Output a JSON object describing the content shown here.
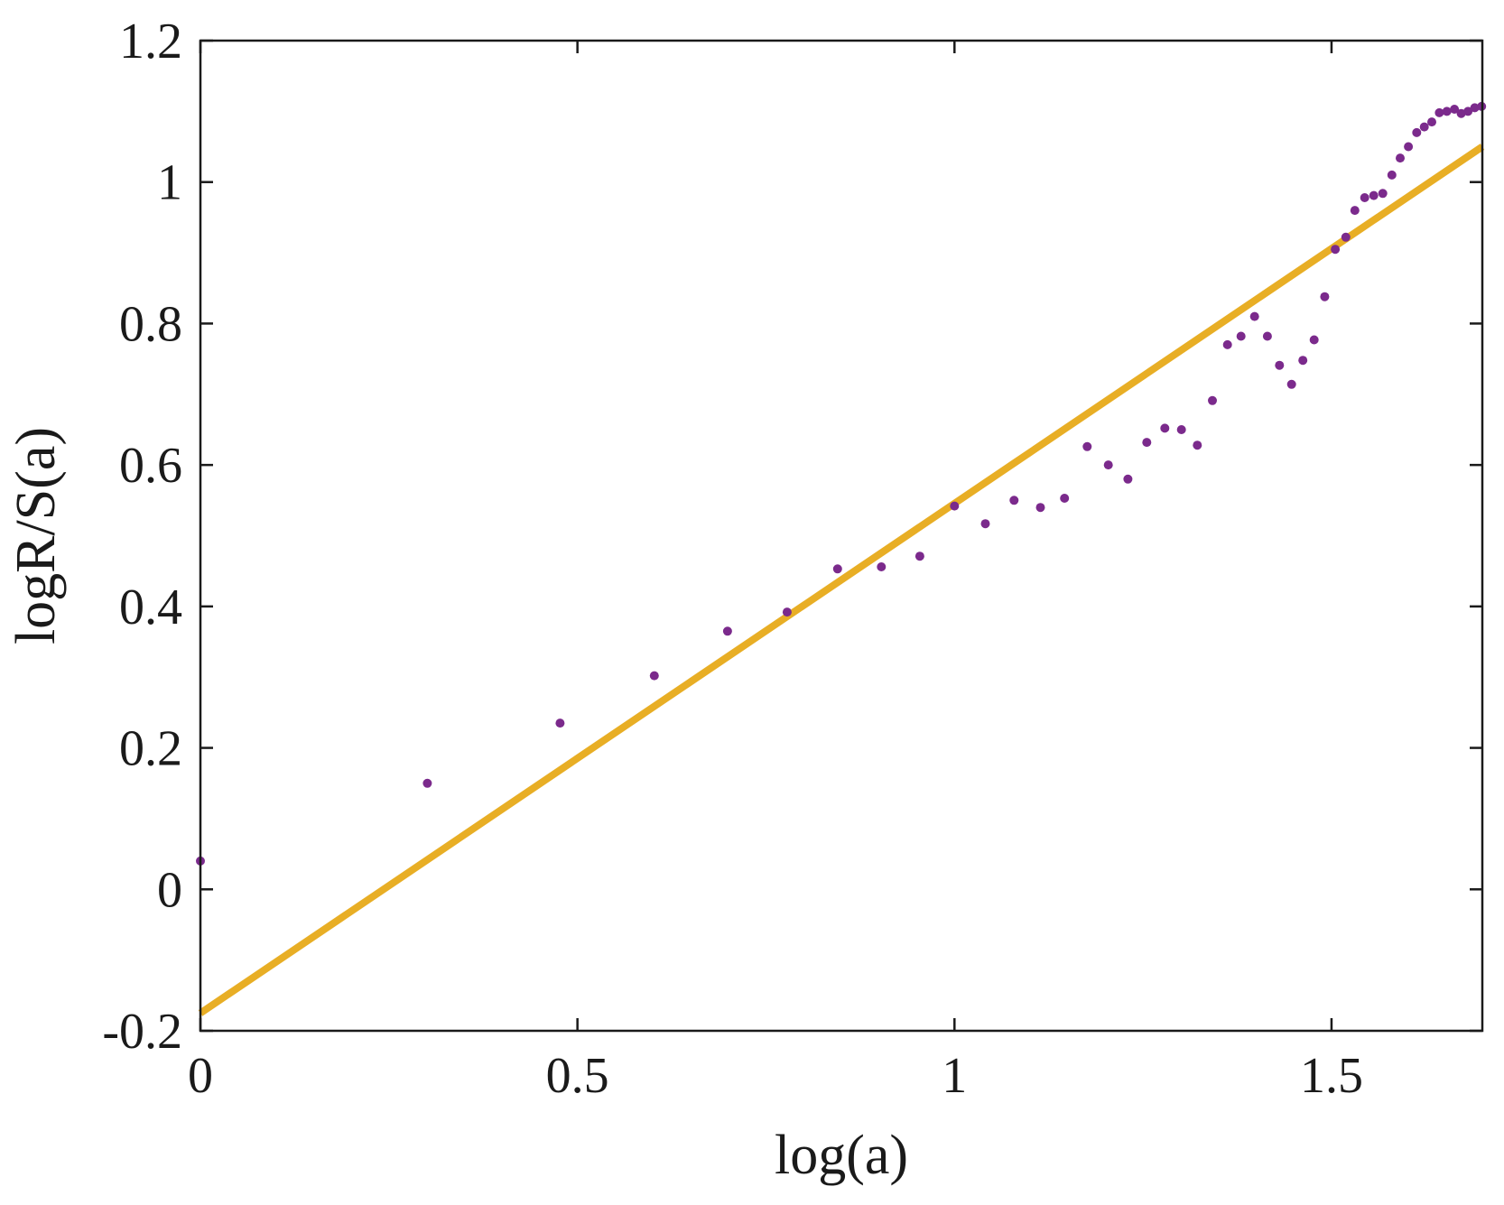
{
  "chart_data": {
    "type": "scatter",
    "title": "",
    "xlabel": "log(a)",
    "ylabel": "logR/S(a)",
    "xlim": [
      0,
      1.7
    ],
    "ylim": [
      -0.2,
      1.2
    ],
    "grid": false,
    "xticks": [
      0,
      0.5,
      1,
      1.5
    ],
    "xtick_labels": [
      "0",
      "0.5",
      "1",
      "1.5"
    ],
    "yticks": [
      -0.2,
      0,
      0.2,
      0.4,
      0.6,
      0.8,
      1,
      1.2
    ],
    "ytick_labels": [
      "-0.2",
      "0",
      "0.2",
      "0.4",
      "0.6",
      "0.8",
      "1",
      "1.2"
    ],
    "series": [
      {
        "kind": "scatter",
        "color": "#7b2a8c",
        "points": [
          [
            0.0,
            0.04
          ],
          [
            0.301,
            0.15
          ],
          [
            0.477,
            0.235
          ],
          [
            0.602,
            0.302
          ],
          [
            0.699,
            0.365
          ],
          [
            0.778,
            0.392
          ],
          [
            0.845,
            0.453
          ],
          [
            0.903,
            0.456
          ],
          [
            0.954,
            0.471
          ],
          [
            1.0,
            0.542
          ],
          [
            1.041,
            0.517
          ],
          [
            1.079,
            0.55
          ],
          [
            1.114,
            0.54
          ],
          [
            1.146,
            0.553
          ],
          [
            1.176,
            0.626
          ],
          [
            1.204,
            0.6
          ],
          [
            1.23,
            0.58
          ],
          [
            1.255,
            0.632
          ],
          [
            1.279,
            0.652
          ],
          [
            1.301,
            0.65
          ],
          [
            1.322,
            0.628
          ],
          [
            1.342,
            0.691
          ],
          [
            1.362,
            0.77
          ],
          [
            1.38,
            0.782
          ],
          [
            1.398,
            0.81
          ],
          [
            1.415,
            0.782
          ],
          [
            1.431,
            0.741
          ],
          [
            1.447,
            0.714
          ],
          [
            1.462,
            0.748
          ],
          [
            1.477,
            0.777
          ],
          [
            1.491,
            0.838
          ],
          [
            1.505,
            0.905
          ],
          [
            1.519,
            0.922
          ],
          [
            1.531,
            0.96
          ],
          [
            1.544,
            0.978
          ],
          [
            1.556,
            0.981
          ],
          [
            1.568,
            0.984
          ],
          [
            1.58,
            1.01
          ],
          [
            1.591,
            1.034
          ],
          [
            1.602,
            1.05
          ],
          [
            1.613,
            1.07
          ],
          [
            1.623,
            1.078
          ],
          [
            1.633,
            1.085
          ],
          [
            1.643,
            1.098
          ],
          [
            1.653,
            1.1
          ],
          [
            1.663,
            1.103
          ],
          [
            1.672,
            1.097
          ],
          [
            1.681,
            1.1
          ],
          [
            1.69,
            1.105
          ],
          [
            1.699,
            1.107
          ]
        ]
      },
      {
        "kind": "line",
        "color": "#e8ae25",
        "x": [
          0,
          1.7
        ],
        "y": [
          -0.175,
          1.05
        ]
      }
    ]
  }
}
